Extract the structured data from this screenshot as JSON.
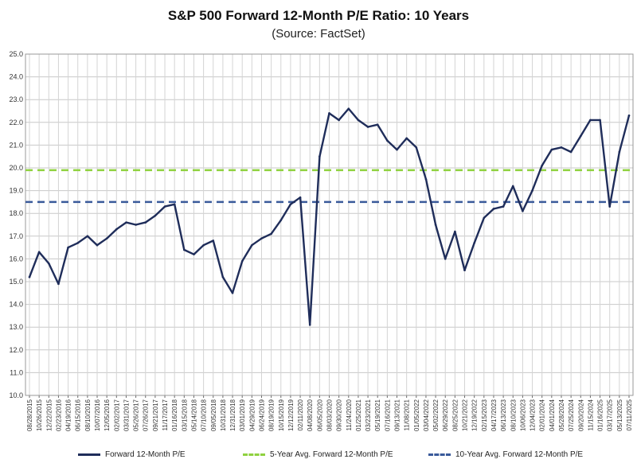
{
  "chart_data": {
    "type": "line",
    "title": "S&P 500 Forward 12-Month P/E Ratio: 10 Years",
    "subtitle": "(Source: FactSet)",
    "ylim": [
      10.0,
      25.0
    ],
    "yticks": [
      "10.0",
      "11.0",
      "12.0",
      "13.0",
      "14.0",
      "15.0",
      "16.0",
      "17.0",
      "18.0",
      "19.0",
      "20.0",
      "21.0",
      "22.0",
      "23.0",
      "24.0",
      "25.0"
    ],
    "xticks": [
      "08/28/2015",
      "10/26/2015",
      "12/22/2015",
      "02/23/2016",
      "04/19/2016",
      "06/15/2016",
      "08/10/2016",
      "10/07/2016",
      "12/05/2016",
      "02/02/2017",
      "03/31/2017",
      "05/26/2017",
      "07/26/2017",
      "09/21/2017",
      "11/17/2017",
      "01/16/2018",
      "03/15/2018",
      "05/14/2018",
      "07/10/2018",
      "09/05/2018",
      "10/31/2018",
      "12/31/2018",
      "03/01/2019",
      "04/29/2019",
      "06/24/2019",
      "08/19/2019",
      "10/15/2019",
      "12/12/2019",
      "02/11/2020",
      "04/08/2020",
      "06/05/2020",
      "08/03/2020",
      "09/30/2020",
      "11/24/2020",
      "01/25/2021",
      "03/23/2021",
      "05/19/2021",
      "07/16/2021",
      "09/13/2021",
      "11/08/2021",
      "01/05/2022",
      "03/04/2022",
      "05/02/2022",
      "06/29/2022",
      "08/25/2022",
      "10/21/2022",
      "12/19/2022",
      "02/15/2023",
      "04/17/2023",
      "06/13/2023",
      "08/10/2023",
      "10/06/2023",
      "12/04/2023",
      "02/01/2024",
      "04/01/2024",
      "05/28/2024",
      "07/25/2024",
      "09/20/2024",
      "11/15/2024",
      "01/16/2025",
      "03/17/2025",
      "05/13/2025",
      "07/11/2025"
    ],
    "grid": true,
    "legend_position": "bottom",
    "series": [
      {
        "name": "Forward 12-Month P/E",
        "color": "#1f2d5a",
        "style": "solid",
        "x": [
          "08/28/2015",
          "10/26/2015",
          "12/22/2015",
          "02/23/2016",
          "04/19/2016",
          "06/15/2016",
          "08/10/2016",
          "10/07/2016",
          "12/05/2016",
          "02/02/2017",
          "03/31/2017",
          "05/26/2017",
          "07/26/2017",
          "09/21/2017",
          "11/17/2017",
          "01/16/2018",
          "03/15/2018",
          "05/14/2018",
          "07/10/2018",
          "09/05/2018",
          "10/31/2018",
          "12/31/2018",
          "03/01/2019",
          "04/29/2019",
          "06/24/2019",
          "08/19/2019",
          "10/15/2019",
          "12/12/2019",
          "02/11/2020",
          "04/08/2020",
          "06/05/2020",
          "08/03/2020",
          "09/30/2020",
          "11/24/2020",
          "01/25/2021",
          "03/23/2021",
          "05/19/2021",
          "07/16/2021",
          "09/13/2021",
          "11/08/2021",
          "01/05/2022",
          "03/04/2022",
          "05/02/2022",
          "06/29/2022",
          "08/25/2022",
          "10/21/2022",
          "12/19/2022",
          "02/15/2023",
          "04/17/2023",
          "06/13/2023",
          "08/10/2023",
          "10/06/2023",
          "12/04/2023",
          "02/01/2024",
          "04/01/2024",
          "05/28/2024",
          "07/25/2024",
          "09/20/2024",
          "11/15/2024",
          "01/16/2025",
          "03/17/2025",
          "05/13/2025",
          "07/11/2025"
        ],
        "values": [
          15.2,
          16.3,
          15.8,
          14.9,
          16.5,
          16.7,
          17.0,
          16.6,
          16.9,
          17.3,
          17.6,
          17.5,
          17.6,
          17.9,
          18.3,
          18.4,
          16.4,
          16.2,
          16.6,
          16.8,
          15.2,
          14.5,
          15.9,
          16.6,
          16.9,
          17.1,
          17.7,
          18.4,
          18.7,
          13.1,
          20.5,
          22.4,
          22.1,
          22.6,
          22.1,
          21.8,
          21.9,
          21.2,
          20.8,
          21.3,
          20.9,
          19.5,
          17.5,
          16.0,
          17.2,
          15.5,
          16.7,
          17.8,
          18.2,
          18.3,
          19.2,
          18.1,
          19.0,
          20.1,
          20.8,
          20.9,
          20.7,
          21.4,
          22.1,
          22.1,
          18.3,
          20.7,
          22.3
        ]
      },
      {
        "name": "5-Year Avg. Forward 12-Month P/E",
        "color": "#8fd13f",
        "style": "dashed",
        "value": 19.9
      },
      {
        "name": "10-Year Avg. Forward 12-Month P/E",
        "color": "#3a5a9a",
        "style": "dashed",
        "value": 18.5
      }
    ]
  }
}
